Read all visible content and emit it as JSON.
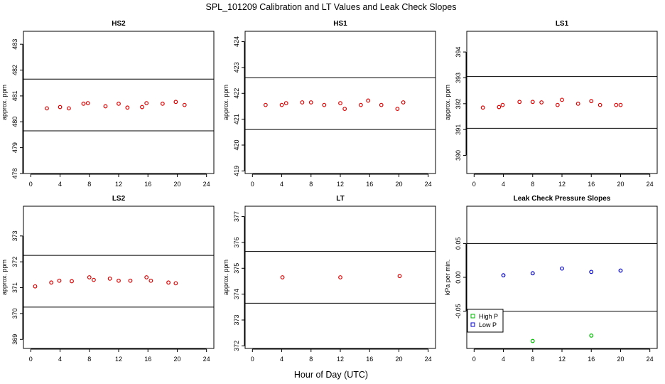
{
  "figure": {
    "title": "SPL_101209  Calibration and LT Values and Leak Check Slopes",
    "xlabel": "Hour of Day (UTC)"
  },
  "chart_data": [
    {
      "type": "scatter",
      "title": "HS2",
      "ylabel": "approx. ppm",
      "xlim": [
        -1,
        25
      ],
      "ylim": [
        478,
        483.5
      ],
      "xticks": [
        0,
        4,
        8,
        12,
        16,
        20,
        24
      ],
      "yticks": [
        478,
        479,
        480,
        481,
        482,
        483
      ],
      "hlines": [
        481.65,
        479.65
      ],
      "series": [
        {
          "marker": "circle",
          "color": "#dd0000",
          "x": [
            2.2,
            4.0,
            5.2,
            7.2,
            7.8,
            10.2,
            12.0,
            13.2,
            15.2,
            15.8,
            18.0,
            19.8,
            21.0
          ],
          "y": [
            480.52,
            480.57,
            480.52,
            480.7,
            480.72,
            480.6,
            480.7,
            480.55,
            480.57,
            480.72,
            480.7,
            480.77,
            480.65
          ]
        }
      ]
    },
    {
      "type": "scatter",
      "title": "HS1",
      "ylabel": "approx. ppm",
      "xlim": [
        -1,
        25
      ],
      "ylim": [
        418.9,
        424.4
      ],
      "xticks": [
        0,
        4,
        8,
        12,
        16,
        20,
        24
      ],
      "yticks": [
        419,
        420,
        421,
        422,
        423,
        424
      ],
      "hlines": [
        422.6,
        420.6
      ],
      "series": [
        {
          "marker": "circle",
          "color": "#dd0000",
          "x": [
            1.8,
            4.0,
            4.6,
            6.8,
            8.0,
            9.8,
            12.0,
            12.6,
            14.8,
            15.8,
            17.6,
            19.8,
            20.6
          ],
          "y": [
            421.55,
            421.55,
            421.62,
            421.65,
            421.65,
            421.55,
            421.62,
            421.4,
            421.55,
            421.72,
            421.55,
            421.4,
            421.65
          ]
        }
      ]
    },
    {
      "type": "scatter",
      "title": "LS1",
      "ylabel": "approx. ppm",
      "xlim": [
        -1,
        25
      ],
      "ylim": [
        389.3,
        394.8
      ],
      "xticks": [
        0,
        4,
        8,
        12,
        16,
        20,
        24
      ],
      "yticks": [
        390,
        391,
        392,
        393,
        394
      ],
      "hlines": [
        393.05,
        391.05
      ],
      "series": [
        {
          "marker": "circle",
          "color": "#dd0000",
          "x": [
            1.2,
            3.4,
            3.9,
            6.2,
            8.0,
            9.2,
            11.4,
            12.0,
            14.2,
            16.0,
            17.2,
            19.4,
            20.0
          ],
          "y": [
            391.85,
            391.87,
            391.95,
            392.07,
            392.07,
            392.05,
            391.95,
            392.15,
            392.0,
            392.1,
            391.95,
            391.95,
            391.95
          ]
        }
      ]
    },
    {
      "type": "scatter",
      "title": "LS2",
      "ylabel": "approx. ppm",
      "xlim": [
        -1,
        25
      ],
      "ylim": [
        368.65,
        374.15
      ],
      "xticks": [
        0,
        4,
        8,
        12,
        16,
        20,
        24
      ],
      "yticks": [
        369,
        370,
        371,
        372,
        373
      ],
      "hlines": [
        372.25,
        370.25
      ],
      "series": [
        {
          "marker": "circle",
          "color": "#dd0000",
          "x": [
            0.6,
            2.8,
            3.9,
            5.6,
            8.0,
            8.6,
            10.8,
            12.0,
            13.6,
            15.8,
            16.4,
            18.8,
            19.8
          ],
          "y": [
            371.05,
            371.2,
            371.27,
            371.25,
            371.4,
            371.3,
            371.35,
            371.27,
            371.27,
            371.4,
            371.27,
            371.2,
            371.17
          ]
        }
      ]
    },
    {
      "type": "scatter",
      "title": "LT",
      "ylabel": "approx. ppm",
      "xlim": [
        -1,
        25
      ],
      "ylim": [
        371.9,
        377.4
      ],
      "xticks": [
        0,
        4,
        8,
        12,
        16,
        20,
        24
      ],
      "yticks": [
        372,
        373,
        374,
        375,
        376,
        377
      ],
      "hlines": [
        375.65,
        373.65
      ],
      "series": [
        {
          "marker": "circle",
          "color": "#dd0000",
          "x": [
            4.1,
            12.0,
            20.1
          ],
          "y": [
            374.65,
            374.65,
            374.7
          ]
        }
      ]
    },
    {
      "type": "scatter",
      "title": "Leak Check Pressure Slopes",
      "ylabel": "kPa per min.",
      "xlim": [
        -1,
        25
      ],
      "ylim": [
        -0.105,
        0.105
      ],
      "xticks": [
        0,
        4,
        8,
        12,
        16,
        20,
        24
      ],
      "yticks": [
        -0.05,
        0.0,
        0.05
      ],
      "ytick_labels": [
        "-0.05",
        "0.00",
        "0.05"
      ],
      "hlines": [
        0.05,
        -0.05
      ],
      "legend": {
        "position": "bottom-left",
        "entries": [
          "High P",
          "Low P"
        ]
      },
      "series": [
        {
          "name": "High P",
          "marker": "circle",
          "color": "#00bb00",
          "x": [
            8.0,
            16.0
          ],
          "y": [
            -0.094,
            -0.086
          ]
        },
        {
          "name": "Low P",
          "marker": "circle",
          "color": "#0000cc",
          "x": [
            4.0,
            8.0,
            12.0,
            16.0,
            20.0
          ],
          "y": [
            0.003,
            0.006,
            0.013,
            0.008,
            0.01
          ]
        }
      ]
    }
  ]
}
